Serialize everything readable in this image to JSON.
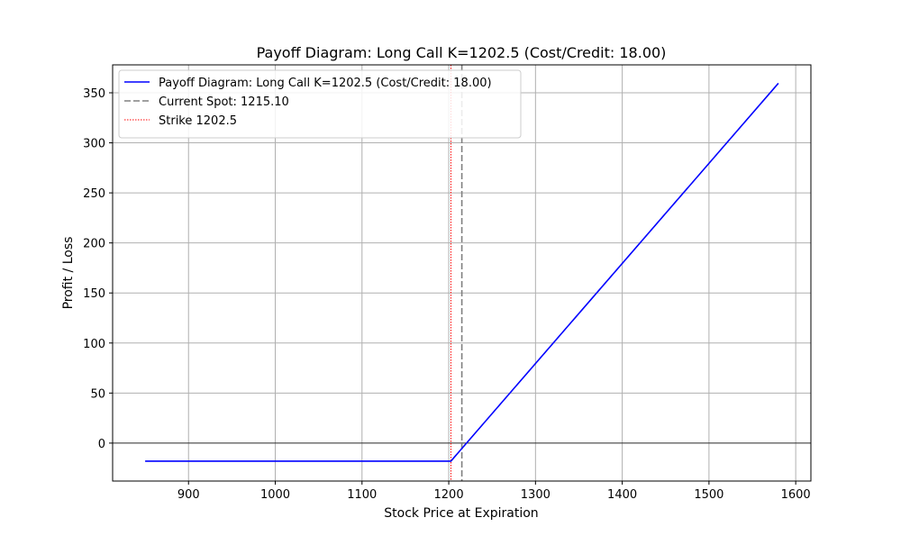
{
  "chart_data": {
    "type": "line",
    "title": "Payoff Diagram: Long Call K=1202.5 (Cost/Credit: 18.00)",
    "xlabel": "Stock Price at Expiration",
    "ylabel": "Profit / Loss",
    "xlim": [
      812.5,
      1617.5
    ],
    "ylim": [
      -37.9,
      377.9
    ],
    "xticks": [
      900,
      1000,
      1100,
      1200,
      1300,
      1400,
      1500,
      1600
    ],
    "yticks": [
      0,
      50,
      100,
      150,
      200,
      250,
      300,
      350
    ],
    "grid": true,
    "legend_position": "top-left",
    "series": [
      {
        "name": "Payoff Diagram: Long Call K=1202.5 (Cost/Credit: 18.00)",
        "kind": "line",
        "color": "#0000ff",
        "x": [
          850,
          1195,
          1202.5,
          1207.5,
          1580
        ],
        "y": [
          -18,
          -18,
          -18,
          -13,
          359.5
        ]
      },
      {
        "name": "Current Spot: 1215.10",
        "kind": "vline",
        "color": "#808080",
        "style": "dashed",
        "x": 1215.1
      },
      {
        "name": "Strike 1202.5",
        "kind": "vline",
        "color": "#ff0000",
        "style": "dotted",
        "x": 1202.5
      }
    ],
    "hline": {
      "y": 0,
      "color": "#000000"
    }
  }
}
